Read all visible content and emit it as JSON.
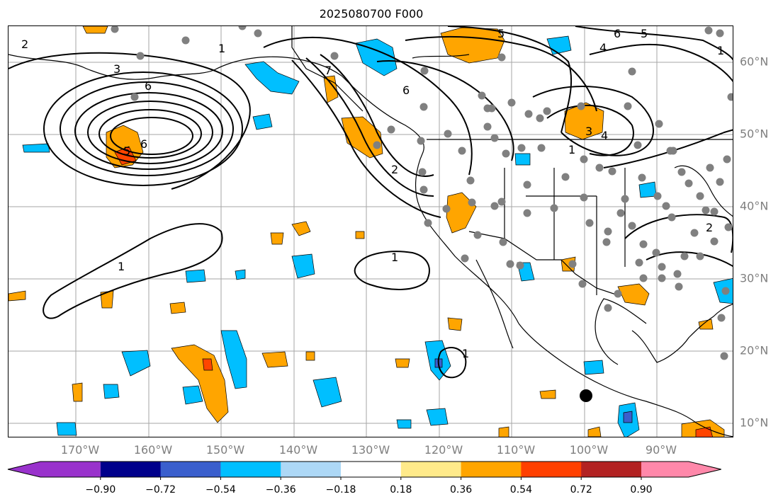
{
  "title": "2025080700 F000",
  "lon_ticks": [
    "170°W",
    "160°W",
    "150°W",
    "140°W",
    "130°W",
    "120°W",
    "110°W",
    "100°W",
    "90°W"
  ],
  "lat_ticks": [
    "60°N",
    "50°N",
    "40°N",
    "30°N",
    "20°N",
    "10°N"
  ],
  "colorbar": {
    "labels": [
      "−0.90",
      "−0.72",
      "−0.54",
      "−0.36",
      "−0.18",
      "0.18",
      "0.36",
      "0.54",
      "0.72",
      "0.90"
    ],
    "colors": [
      "#9932cc",
      "#00008b",
      "#3a5fcd",
      "#00bfff",
      "#add8f6",
      "#ffffff",
      "#ffea8a",
      "#ffa500",
      "#ff4000",
      "#b22222",
      "#ff88aa"
    ]
  },
  "contour_labels": [
    "2",
    "3",
    "6",
    "1",
    "7",
    "6",
    "5",
    "2",
    "1",
    "1",
    "1",
    "6",
    "6",
    "5",
    "4",
    "1",
    "3",
    "4",
    "5",
    "2",
    "1"
  ],
  "fill_colors": {
    "positive": "#ffa500",
    "strong_positive": "#ff4500",
    "negative": "#00bfff",
    "strong_negative": "#3a5fcd"
  }
}
